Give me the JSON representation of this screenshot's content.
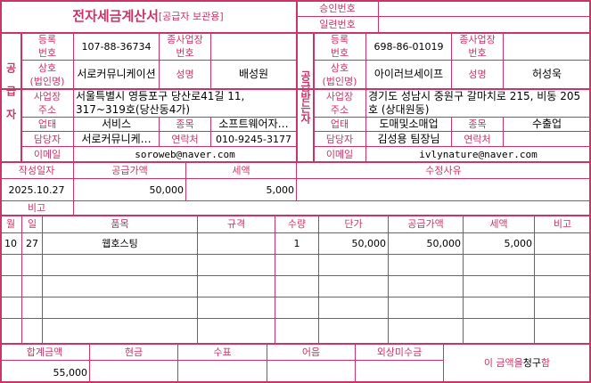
{
  "header": {
    "title": "전자세금계산서",
    "subtitle": "[공급자 보관용]",
    "approval_label": "승인번호",
    "approval_value": "",
    "serial_label": "일련번호",
    "serial_value": ""
  },
  "labels": {
    "reg_no": "등록\n번호",
    "branch_no": "종사업장\n번호",
    "company": "상호\n(법인명)",
    "name": "성명",
    "address": "사업장\n주소",
    "biz_type": "업태",
    "biz_item": "종목",
    "manager": "담당자",
    "contact": "연락처",
    "email": "이메일"
  },
  "supplier": {
    "section": "공급자",
    "reg_no": "107-88-36734",
    "branch_no": "",
    "company": "서로커뮤니케이션",
    "name": "배성원",
    "address": "서울특별시 영등포구 당산로41길 11, 317~319호(당산동4가)",
    "biz_type": "서비스",
    "biz_item": "소프트웨어자…",
    "manager": "서로커뮤니케…",
    "contact": "010-9245-3177",
    "email": "soroweb@naver.com"
  },
  "buyer": {
    "section": "공급받는자",
    "reg_no": "698-86-01019",
    "branch_no": "",
    "company": "아이러브세이프",
    "name": "허성욱",
    "address": "경기도 성남시 중원구 갈마치로 215, 비동 205호 (상대원동)",
    "biz_type": "도매및소매업",
    "biz_item": "수출업",
    "manager": "김성용 팀장님",
    "contact": "",
    "email": "ivlynature@naver.com"
  },
  "summary": {
    "date_label": "작성일자",
    "supply_label": "공급가액",
    "tax_label": "세액",
    "reason_label": "수정사유",
    "date": "2025.10.27",
    "supply": "50,000",
    "tax": "5,000",
    "reason": "",
    "note_label": "비고",
    "note": ""
  },
  "items": {
    "headers": [
      "월",
      "일",
      "품목",
      "규격",
      "수량",
      "단가",
      "공급가액",
      "세액",
      "비고"
    ],
    "rows": [
      [
        "10",
        "27",
        "웹호스팅",
        "",
        "1",
        "50,000",
        "50,000",
        "5,000",
        ""
      ]
    ]
  },
  "totals": {
    "headers": [
      "합계금액",
      "현금",
      "수표",
      "어음",
      "외상미수금"
    ],
    "values": [
      "55,000",
      "",
      "",
      "",
      ""
    ],
    "claim_prefix": "이 금액을 ",
    "claim_word": "청구",
    "claim_suffix": "함"
  },
  "colors": {
    "accent": "#cc3366"
  }
}
